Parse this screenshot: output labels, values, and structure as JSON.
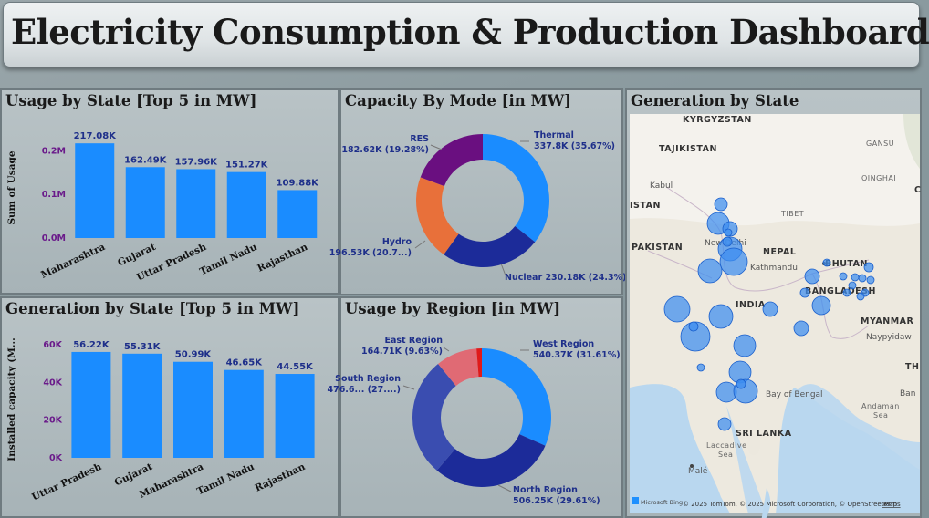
{
  "header": {
    "title": "Electricity Consumption & Production Dashboard"
  },
  "panels": {
    "usage_state": {
      "title": "Usage by State [Top 5 in MW]"
    },
    "capacity_mode": {
      "title": "Capacity By Mode [in MW]"
    },
    "gen_state_map": {
      "title": "Generation by State"
    },
    "gen_state": {
      "title": "Generation by State [Top 5 in MW]"
    },
    "usage_region": {
      "title": "Usage by Region [in MW]"
    }
  },
  "chart_data": [
    {
      "id": "usage_state",
      "type": "bar",
      "categories": [
        "Maharashtra",
        "Gujarat",
        "Uttar Pradesh",
        "Tamil Nadu",
        "Rajasthan"
      ],
      "values": [
        217080,
        162490,
        157960,
        151270,
        109880
      ],
      "data_labels": [
        "217.08K",
        "162.49K",
        "157.96K",
        "151.27K",
        "109.88K"
      ],
      "ylabel": "Sum of Usage",
      "yticks": [
        0,
        100000,
        200000
      ],
      "ytick_labels": [
        "0.0M",
        "0.1M",
        "0.2M"
      ],
      "ylim": [
        0,
        230000
      ],
      "color": "#1a8cff"
    },
    {
      "id": "gen_state",
      "type": "bar",
      "categories": [
        "Uttar Pradesh",
        "Gujarat",
        "Maharashtra",
        "Tamil Nadu",
        "Rajasthan"
      ],
      "values": [
        56220,
        55310,
        50990,
        46650,
        44550
      ],
      "data_labels": [
        "56.22K",
        "55.31K",
        "50.99K",
        "46.65K",
        "44.55K"
      ],
      "ylabel": "Installed capacity (M...",
      "yticks": [
        0,
        20000,
        40000,
        60000
      ],
      "ytick_labels": [
        "0K",
        "20K",
        "40K",
        "60K"
      ],
      "ylim": [
        0,
        62000
      ],
      "color": "#1a8cff"
    },
    {
      "id": "capacity_mode",
      "type": "pie",
      "donut": true,
      "slices": [
        {
          "label": "Thermal",
          "value": 337800,
          "text": "337.8K (35.67%)",
          "color": "#1a8cff"
        },
        {
          "label": "Nuclear",
          "value": 230180,
          "text": "Nuclear 230.18K (24.3%)",
          "color": "#1c2b99"
        },
        {
          "label": "Hydro",
          "value": 196530,
          "text": "196.53K (20.7...)",
          "color": "#e8703a"
        },
        {
          "label": "RES",
          "value": 182620,
          "text": "182.62K (19.28%)",
          "color": "#6a0f80"
        }
      ]
    },
    {
      "id": "usage_region",
      "type": "pie",
      "donut": true,
      "slices": [
        {
          "label": "West Region",
          "value": 540370,
          "text": "540.37K (31.61%)",
          "color": "#1a8cff"
        },
        {
          "label": "North Region",
          "value": 506250,
          "text": "506.25K (29.61%)",
          "color": "#1c2b99"
        },
        {
          "label": "South Region",
          "value": 476600,
          "text": "476.6... (27....)",
          "color": "#3a4db0"
        },
        {
          "label": "East Region",
          "value": 164710,
          "text": "164.71K (9.63%)",
          "color": "#e06a74"
        },
        {
          "label": "",
          "value": 21000,
          "text": "",
          "color": "#e01a1a"
        }
      ]
    }
  ],
  "map": {
    "labels": {
      "kyrgyzstan": "KYRGYZSTAN",
      "tajikistan": "TAJIKISTAN",
      "gansu": "GANSU",
      "qinghai": "QINGHAI",
      "kabul": "Kabul",
      "istan": "ISTAN",
      "tibet": "TIBET",
      "pakistan": "PAKISTAN",
      "newdelhi": "New Delhi",
      "nepal": "NEPAL",
      "bhutan": "BHUTAN",
      "kathmandu": "Kathmandu",
      "bangladesh": "BANGLADESH",
      "india": "INDIA",
      "myanmar": "MYANMAR",
      "naypyidaw": "Naypyidaw",
      "bay": "Bay of Bengal",
      "andaman": "Andaman",
      "sea": "Sea",
      "srilanka": "SRI LANKA",
      "laccadive": "Laccadive",
      "lsea": "Sea",
      "male": "Malé",
      "th": "TH",
      "ban": "Ban",
      "c": "C"
    },
    "attribution": "© 2025 TomTom, © 2025 Microsoft Corporation, © OpenStreetMap",
    "terms": "Terms",
    "logo": "Microsoft Bing",
    "bubble_color": "#3d8ef0"
  }
}
